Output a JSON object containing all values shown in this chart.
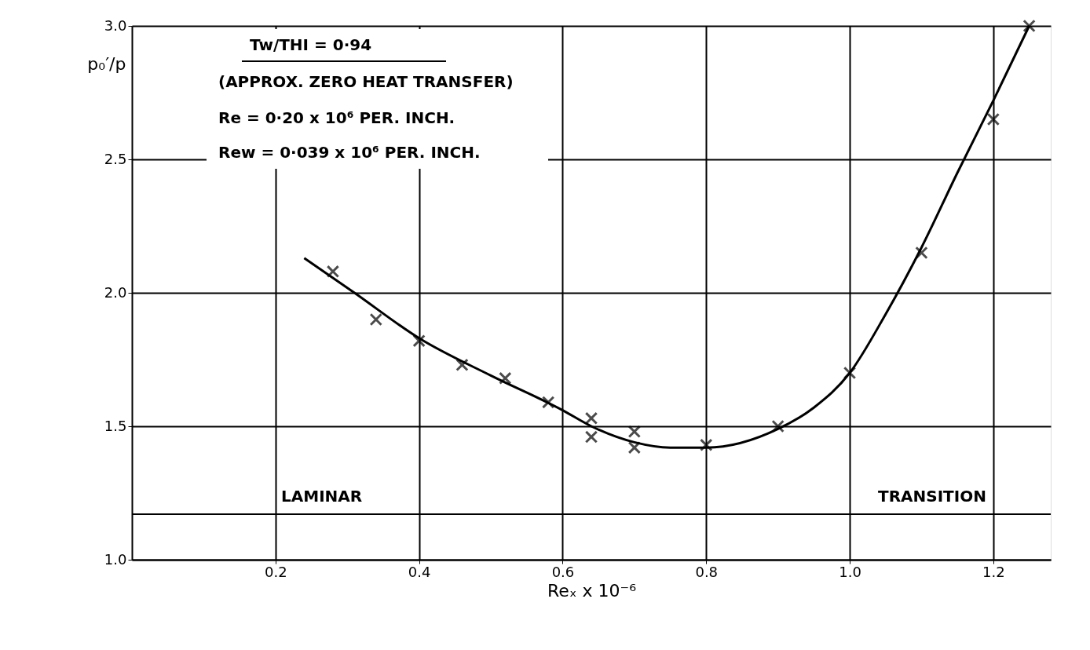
{
  "chart_data": {
    "type": "scatter",
    "xlabel": "Reₓ x 10⁻⁶",
    "ylabel": "p₀′/p",
    "annotations": [
      "Tw/THI = 0·94",
      "(APPROX. ZERO HEAT TRANSFER)",
      "Re = 0·20 x 10⁶ PER. INCH.",
      "Rew = 0·039 x 10⁶ PER. INCH.",
      "LAMINAR",
      "TRANSITION"
    ],
    "series": [
      {
        "color": "#000000",
        "marker": "cross",
        "x": [
          0.28,
          0.34,
          0.4,
          0.46,
          0.52,
          0.58,
          0.64,
          0.64,
          0.7,
          0.7,
          0.8,
          0.9,
          1.0,
          1.1,
          1.2,
          1.25
        ],
        "values": [
          2.08,
          1.9,
          1.82,
          1.73,
          1.68,
          1.59,
          1.53,
          1.46,
          1.48,
          1.42,
          1.43,
          1.5,
          1.7,
          2.15,
          2.65,
          3.0
        ]
      },
      {
        "type": "line",
        "color": "#000000",
        "x": [
          0.24,
          0.31,
          0.4,
          0.5,
          0.6,
          0.64,
          0.7,
          0.75,
          0.8,
          0.9,
          0.95,
          1.0,
          1.05,
          1.1,
          1.15,
          1.2,
          1.25
        ],
        "values": [
          2.13,
          2.0,
          1.83,
          1.69,
          1.56,
          1.5,
          1.44,
          1.42,
          1.42,
          1.49,
          1.57,
          1.7,
          1.92,
          2.17,
          2.45,
          2.72,
          3.0
        ]
      }
    ],
    "xlim": [
      0,
      1.28
    ],
    "ylim": [
      1.0,
      3.0
    ],
    "xticks": [
      {
        "value": 0.2,
        "label": "0.2"
      },
      {
        "value": 0.4,
        "label": "0.4"
      },
      {
        "value": 0.6,
        "label": "0.6"
      },
      {
        "value": 0.8,
        "label": "0.8"
      },
      {
        "value": 1.0,
        "label": "1.0"
      },
      {
        "value": 1.2,
        "label": "1.2"
      }
    ],
    "yticks": [
      {
        "value": 1.0,
        "label": "1.0"
      },
      {
        "value": 1.5,
        "label": "1.5"
      },
      {
        "value": 2.0,
        "label": "2.0"
      },
      {
        "value": 2.5,
        "label": "2.5"
      },
      {
        "value": 3.0,
        "label": "3.0"
      }
    ],
    "grid": true
  }
}
